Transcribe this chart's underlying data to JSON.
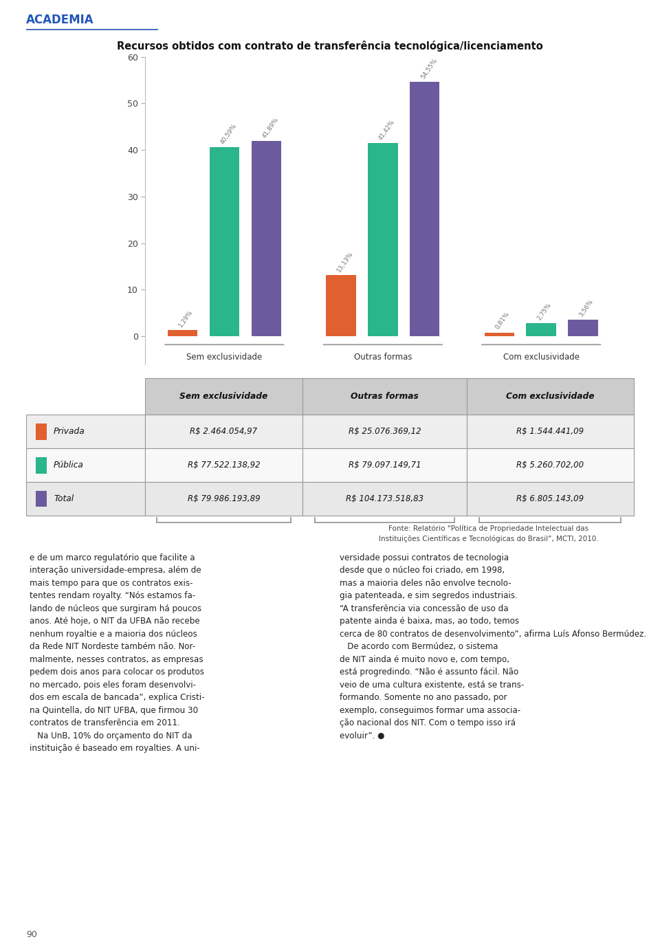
{
  "title": "Recursos obtidos com contrato de transferência tecnológica/licenciamento",
  "header_text": "ACADEMIA",
  "categories": [
    "Sem exclusividade",
    "Outras formas",
    "Com exclusividade"
  ],
  "series": {
    "Privada": [
      1.29,
      13.13,
      0.81
    ],
    "Pública": [
      40.59,
      41.42,
      2.75
    ],
    "Total": [
      41.89,
      54.55,
      3.56
    ]
  },
  "bar_colors": {
    "Privada": "#e06030",
    "Pública": "#2ab58a",
    "Total": "#6b5b9e"
  },
  "ylim": [
    0,
    60
  ],
  "yticks": [
    0,
    10,
    20,
    30,
    40,
    50,
    60
  ],
  "table_headers": [
    "",
    "Sem exclusividade",
    "Outras formas",
    "Com exclusividade"
  ],
  "table_rows": [
    [
      "Privada",
      "R$ 2.464.054,97",
      "R$ 25.076.369,12",
      "R$ 1.544.441,09"
    ],
    [
      "Pública",
      "R$ 77.522.138,92",
      "R$ 79.097.149,71",
      "R$ 5.260.702,00"
    ],
    [
      "Total",
      "R$ 79.986.193,89",
      "R$ 104.173.518,83",
      "R$ 6.805.143,09"
    ]
  ],
  "fonte_text": "Fonte: Relatório “Política de Propriedade Intelectual das\nInstituições Científicas e Tecnológicas do Brasil”, MCTI, 2010.",
  "body_text_left": "e de um marco regulatório que facilite a\ninteração universidade-empresa, além de\nmais tempo para que os contratos exis-\ntentes rendam royalty. “Nós estamos fa-\nlando de núcleos que surgiram há poucos\nanos. Até hoje, o NIT da UFBA não recebe\nnenhum royaltie e a maioria dos núcleos\nda Rede NIT Nordeste também não. Nor-\nmalmente, nesses contratos, as empresas\npedem dois anos para colocar os produtos\nno mercado, pois eles foram desenvolvi-\ndos em escala de bancada”, explica Cristi-\nna Quintella, do NIT UFBA, que firmou 30\ncontratos de transferência em 2011.\n   Na UnB, 10% do orçamento do NIT da\ninstituição é baseado em royalties. A uni-",
  "body_text_right": "versidade possui contratos de tecnologia\ndesde que o núcleo foi criado, em 1998,\nmas a maioria deles não envolve tecnolo-\ngia patenteada, e sim segredos industriais.\n“A transferência via concessão de uso da\npatente ainda é baixa, mas, ao todo, temos\ncerca de 80 contratos de desenvolvimento”, afirma Luís Afonso Bermúdez.\n   De acordo com Bermúdez, o sistema\nde NIT ainda é muito novo e, com tempo,\nestá progredindo. “Não é assunto fácil. Não\nveio de uma cultura existente, está se trans-\nformando. Somente no ano passado, por\nexemplo, conseguimos formar uma associa-\nção nacional dos NIT. Com o tempo isso irá\nevoluir”. ●",
  "page_number": "90"
}
